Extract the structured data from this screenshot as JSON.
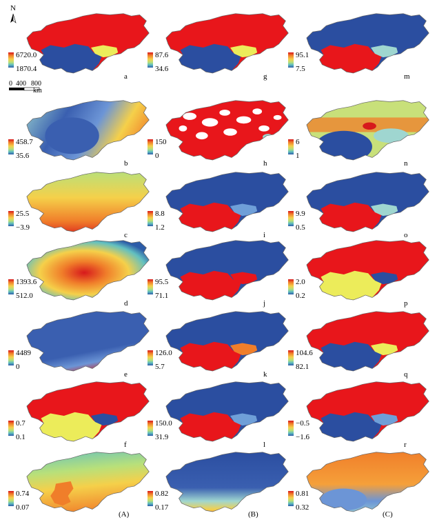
{
  "north_label": "N",
  "scale_bar": {
    "ticks": [
      "0",
      "400",
      "800"
    ],
    "unit": "km"
  },
  "column_labels": [
    "(A)",
    "(B)",
    "(C)"
  ],
  "palette": {
    "red": "#e8161b",
    "blue": "#2b4ea0",
    "yellow": "#ecec5a",
    "cyan": "#9fd6d0",
    "orange": "#f07e2a",
    "lightblue": "#6f9fd8",
    "ramp": [
      "#d7191c",
      "#f07e2a",
      "#f5d04a",
      "#b8e07a",
      "#62c0c0",
      "#2c5ca8"
    ]
  },
  "panels": [
    {
      "letter": "a",
      "max": "6720.0",
      "min": "1870.4",
      "fill": "red",
      "sub": "blue",
      "accent": "yellow"
    },
    {
      "letter": "g",
      "max": "87.6",
      "min": "34.6",
      "fill": "red",
      "sub": "blue",
      "accent": "yellow"
    },
    {
      "letter": "m",
      "max": "95.1",
      "min": "7.5",
      "fill": "blue",
      "sub": "red",
      "accent": "cyan"
    },
    {
      "letter": "b",
      "max": "458.7",
      "min": "35.6",
      "fill": "gradient-b"
    },
    {
      "letter": "h",
      "max": "150",
      "min": "0",
      "fill": "patchy-red"
    },
    {
      "letter": "n",
      "max": "6",
      "min": "1",
      "fill": "mixed-n"
    },
    {
      "letter": "c",
      "max": "25.5",
      "min": "−3.9",
      "fill": "gradient-c"
    },
    {
      "letter": "i",
      "max": "8.8",
      "min": "1.2",
      "fill": "blue",
      "sub": "red",
      "accent": "lightblue"
    },
    {
      "letter": "o",
      "max": "9.9",
      "min": "0.5",
      "fill": "blue",
      "sub": "red",
      "accent": "cyan"
    },
    {
      "letter": "d",
      "max": "1393.6",
      "min": "512.0",
      "fill": "gradient-d"
    },
    {
      "letter": "j",
      "max": "95.5",
      "min": "71.1",
      "fill": "blue",
      "sub": "red",
      "accent": "red"
    },
    {
      "letter": "p",
      "max": "2.0",
      "min": "0.2",
      "fill": "red",
      "sub": "yellow",
      "accent": "blue"
    },
    {
      "letter": "e",
      "max": "4489",
      "min": "0",
      "fill": "gradient-e"
    },
    {
      "letter": "k",
      "max": "126.0",
      "min": "5.7",
      "fill": "blue",
      "sub": "red",
      "accent": "orange"
    },
    {
      "letter": "q",
      "max": "104.6",
      "min": "82.1",
      "fill": "red",
      "sub": "blue",
      "accent": "yellow"
    },
    {
      "letter": "f",
      "max": "0.7",
      "min": "0.1",
      "fill": "red",
      "sub": "yellow",
      "accent": "blue"
    },
    {
      "letter": "l",
      "max": "150.0",
      "min": "31.9",
      "fill": "blue",
      "sub": "red",
      "accent": "lightblue"
    },
    {
      "letter": "r",
      "max": "−0.5",
      "min": "−1.6",
      "fill": "red",
      "sub": "blue",
      "accent": "lightblue"
    },
    {
      "letter": "",
      "max": "0.74",
      "min": "0.07",
      "fill": "gradient-A"
    },
    {
      "letter": "",
      "max": "0.82",
      "min": "0.17",
      "fill": "gradient-B"
    },
    {
      "letter": "",
      "max": "0.81",
      "min": "0.32",
      "fill": "gradient-C"
    }
  ]
}
